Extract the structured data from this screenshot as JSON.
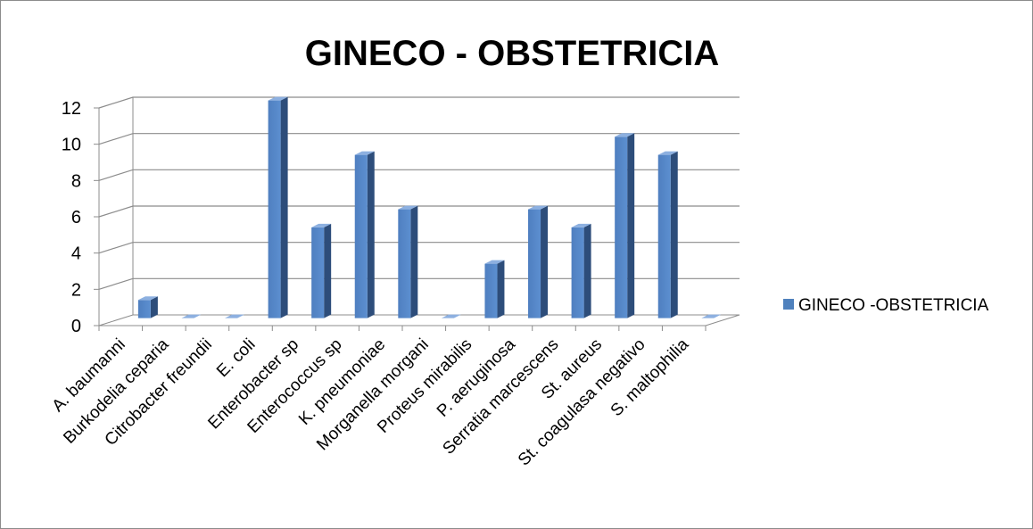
{
  "chart_data": {
    "type": "bar",
    "title": "GINECO - OBSTETRICIA",
    "xlabel": "",
    "ylabel": "",
    "ylim": [
      0,
      12
    ],
    "yticks": [
      0,
      2,
      4,
      6,
      8,
      10,
      12
    ],
    "grid": true,
    "legend_position": "right",
    "categories": [
      "A. baumanni",
      "Burkodelia ceparia",
      "Citrobacter freundii",
      "E. coli",
      "Enterobacter sp",
      "Enterococcus sp",
      "K. pneumoniae",
      "Morganella morgani",
      "Proteus mirabilis",
      "P. aeruginosa",
      "Serratia marcescens",
      "St. aureus",
      "St. coagulasa negativo",
      "S. maltophilia"
    ],
    "series": [
      {
        "name": "GINECO -OBSTETRICIA",
        "color": "#4f81bd",
        "values": [
          1,
          0,
          0,
          12,
          5,
          9,
          6,
          0,
          3,
          6,
          5,
          10,
          9,
          0
        ]
      }
    ]
  }
}
